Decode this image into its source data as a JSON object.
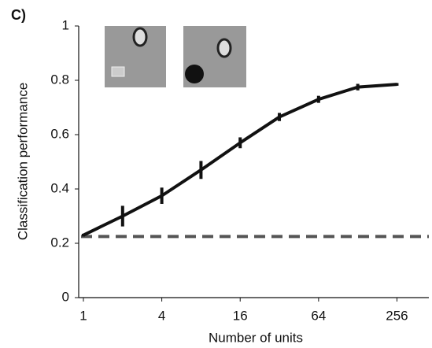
{
  "chart_data": {
    "type": "line",
    "panel_label": "C)",
    "xlabel": "Number of units",
    "ylabel": "Classification performance",
    "xscale": "log2",
    "xlim": [
      0.92,
      450
    ],
    "ylim": [
      0,
      1
    ],
    "xticks": [
      1,
      4,
      16,
      64,
      256
    ],
    "yticks": [
      0,
      0.2,
      0.4,
      0.6,
      0.8,
      1
    ],
    "x": [
      1,
      2,
      4,
      8,
      16,
      32,
      64,
      128,
      256
    ],
    "series": [
      {
        "color": "#111111",
        "values": [
          0.23,
          0.3,
          0.375,
          0.47,
          0.57,
          0.665,
          0.73,
          0.775,
          0.785
        ],
        "errors": [
          0.005,
          0.038,
          0.03,
          0.033,
          0.02,
          0.015,
          0.013,
          0.012,
          0.005
        ]
      }
    ],
    "chance_level": 0.225,
    "chance_color": "#555555"
  }
}
